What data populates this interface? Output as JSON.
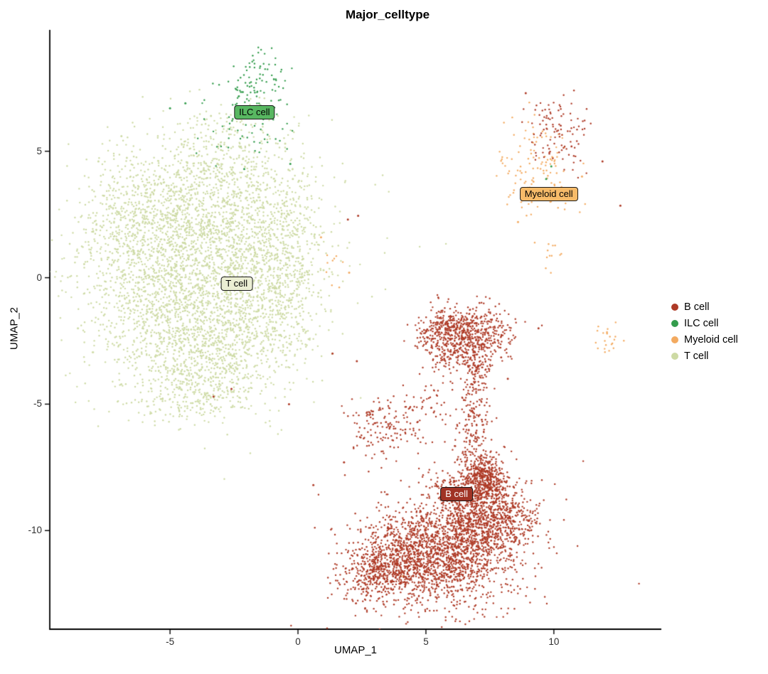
{
  "seed": 7,
  "chart_data": {
    "type": "scatter",
    "title": "Major_celltype",
    "xlabel": "UMAP_1",
    "ylabel": "UMAP_2",
    "xlim": [
      -9.7,
      14.2
    ],
    "ylim": [
      -13.9,
      9.8
    ],
    "x_ticks": [
      -5,
      0,
      5,
      10
    ],
    "y_ticks": [
      -10,
      -5,
      0,
      5
    ],
    "grid": false,
    "legend_position": "right",
    "point_radius": 1.2,
    "legend": [
      {
        "name": "B cell",
        "color": "#ae3a26"
      },
      {
        "name": "ILC cell",
        "color": "#339c4c"
      },
      {
        "name": "Myeloid cell",
        "color": "#f3aa60"
      },
      {
        "name": "T cell",
        "color": "#cddaa4"
      }
    ],
    "draw_order": [
      "T cell",
      "Myeloid cell",
      "ILC cell",
      "B cell"
    ],
    "clusters": {
      "T cell": [
        [
          -4.6,
          2.9,
          1.7,
          1.3,
          700
        ],
        [
          -3.0,
          1.0,
          1.9,
          1.6,
          900
        ],
        [
          -4.9,
          -1.4,
          1.7,
          1.4,
          700
        ],
        [
          -2.2,
          -1.9,
          1.4,
          1.2,
          450
        ],
        [
          -1.0,
          1.8,
          1.2,
          1.5,
          400
        ],
        [
          -5.9,
          0.8,
          1.2,
          1.5,
          300
        ],
        [
          -4.0,
          -4.6,
          1.3,
          0.55,
          260
        ],
        [
          -3.0,
          4.6,
          1.4,
          0.8,
          220
        ],
        [
          -1.8,
          6.0,
          1.0,
          0.7,
          50
        ],
        [
          -0.6,
          -0.5,
          0.8,
          1.2,
          200
        ],
        [
          -6.8,
          1.5,
          0.9,
          1.2,
          150
        ],
        [
          -3.6,
          -3.2,
          1.5,
          0.8,
          300
        ],
        [
          -4.0,
          0.5,
          3.2,
          3.0,
          260
        ]
      ],
      "ILC cell": [
        [
          -1.55,
          7.7,
          0.55,
          0.6,
          70
        ],
        [
          -1.9,
          6.6,
          0.8,
          0.6,
          35
        ],
        [
          -2.4,
          5.6,
          0.7,
          0.5,
          18
        ],
        [
          -1.0,
          5.2,
          0.5,
          0.6,
          10
        ],
        [
          -1.3,
          8.6,
          0.35,
          0.25,
          12
        ]
      ],
      "Myeloid cell": [
        [
          9.7,
          4.4,
          0.55,
          0.8,
          60
        ],
        [
          8.9,
          3.5,
          0.45,
          0.4,
          30
        ],
        [
          8.3,
          4.6,
          0.3,
          0.6,
          18
        ],
        [
          12.15,
          -2.45,
          0.22,
          0.35,
          22
        ],
        [
          9.85,
          0.9,
          0.3,
          0.3,
          12
        ],
        [
          1.4,
          0.5,
          0.35,
          0.4,
          9
        ],
        [
          10.4,
          3.2,
          0.5,
          0.4,
          12
        ],
        [
          9.3,
          5.6,
          0.4,
          0.5,
          15
        ]
      ],
      "B cell": [
        [
          10.05,
          5.9,
          0.55,
          0.65,
          60
        ],
        [
          10.0,
          4.9,
          0.5,
          0.5,
          25
        ],
        [
          10.9,
          6.3,
          0.5,
          0.4,
          12
        ],
        [
          9.6,
          6.6,
          0.35,
          0.35,
          10
        ],
        [
          5.6,
          -11.4,
          1.4,
          0.85,
          850
        ],
        [
          7.1,
          -9.7,
          1.0,
          0.75,
          600
        ],
        [
          4.3,
          -10.7,
          0.9,
          0.8,
          450
        ],
        [
          3.4,
          -11.4,
          0.7,
          0.6,
          280
        ],
        [
          8.3,
          -9.4,
          0.5,
          0.55,
          200
        ],
        [
          7.35,
          -7.95,
          0.4,
          0.5,
          420
        ],
        [
          6.6,
          -8.5,
          0.6,
          0.6,
          240
        ],
        [
          6.5,
          -10.4,
          0.9,
          0.7,
          300
        ],
        [
          2.7,
          -12.0,
          0.5,
          0.5,
          120
        ],
        [
          6.8,
          -6.2,
          0.35,
          0.9,
          130
        ],
        [
          6.95,
          -4.6,
          0.28,
          0.9,
          90
        ],
        [
          6.9,
          -3.4,
          0.3,
          0.5,
          80
        ],
        [
          6.9,
          -2.3,
          0.75,
          0.55,
          420
        ],
        [
          6.0,
          -1.9,
          0.55,
          0.4,
          180
        ],
        [
          5.7,
          -3.0,
          0.45,
          0.5,
          90
        ],
        [
          5.2,
          -2.3,
          0.4,
          0.35,
          60
        ],
        [
          3.1,
          -6.3,
          0.5,
          0.4,
          55
        ],
        [
          4.35,
          -6.0,
          0.5,
          0.35,
          45
        ],
        [
          2.75,
          -5.5,
          0.3,
          0.3,
          25
        ],
        [
          3.9,
          -5.1,
          0.8,
          0.35,
          35
        ],
        [
          5.3,
          -4.9,
          0.5,
          0.4,
          30
        ],
        [
          5.5,
          -10.5,
          2.2,
          1.6,
          220
        ]
      ]
    },
    "stray_points": {
      "T cell": [
        [
          -7.8,
          4.6
        ],
        [
          -6.9,
          5.6
        ],
        [
          -0.2,
          3.9
        ],
        [
          1.0,
          0.3
        ],
        [
          0.8,
          -0.6
        ],
        [
          -8.6,
          -2.0
        ],
        [
          -0.5,
          5.3
        ],
        [
          -3.4,
          6.4
        ]
      ],
      "ILC cell": [
        [
          -5.0,
          6.7
        ],
        [
          -4.4,
          6.9
        ],
        [
          9.9,
          4.4
        ],
        [
          9.7,
          3.9
        ],
        [
          -0.3,
          4.5
        ],
        [
          -2.1,
          4.3
        ]
      ],
      "Myeloid cell": [
        [
          5.0,
          -9.9
        ],
        [
          4.1,
          -11.8
        ],
        [
          6.3,
          -2.0
        ],
        [
          0.9,
          1.6
        ],
        [
          11.1,
          4.0
        ],
        [
          8.6,
          2.2
        ],
        [
          2.0,
          0.2
        ]
      ],
      "B cell": [
        [
          1.95,
          2.3
        ],
        [
          2.35,
          2.45
        ],
        [
          2.3,
          -3.3
        ],
        [
          1.35,
          -3.0
        ],
        [
          12.6,
          2.85
        ],
        [
          11.9,
          4.6
        ],
        [
          8.9,
          7.3
        ],
        [
          -3.3,
          -4.7
        ],
        [
          -2.6,
          -4.4
        ],
        [
          -0.35,
          -5.0
        ],
        [
          9.4,
          -2.0
        ],
        [
          8.2,
          -4.0
        ],
        [
          0.6,
          -8.2
        ],
        [
          1.8,
          -7.3
        ]
      ]
    },
    "cluster_labels": [
      {
        "text": "ILC cell",
        "x": -1.7,
        "y": 6.55,
        "fill": "#58b761",
        "color": "#000000"
      },
      {
        "text": "T cell",
        "x": -2.4,
        "y": -0.25,
        "fill": "#ebeed3",
        "color": "#000000"
      },
      {
        "text": "Myeloid cell",
        "x": 9.8,
        "y": 3.3,
        "fill": "#f6bb69",
        "color": "#000000"
      },
      {
        "text": "B cell",
        "x": 6.2,
        "y": -8.55,
        "fill": "#a03325",
        "color": "#ffffff"
      }
    ]
  }
}
